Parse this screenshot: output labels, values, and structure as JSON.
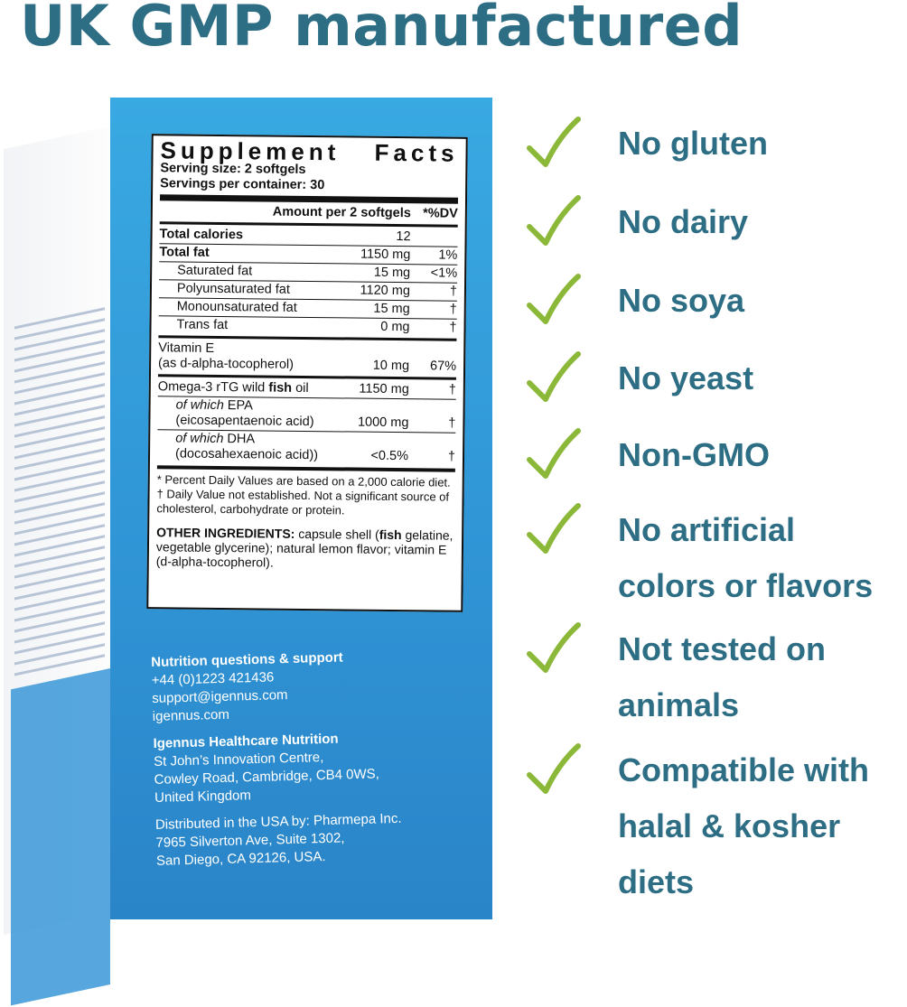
{
  "headline": "UK GMP manufactured",
  "colors": {
    "headline": "#2d6e85",
    "check": "#8cb83a",
    "box_blue": "#2f93d4"
  },
  "supplement_facts": {
    "title_left": "Supplement",
    "title_right": "Facts",
    "serving_size": "Serving size: 2 softgels",
    "servings_per_container": "Servings per container: 30",
    "amount_header": "Amount per 2 softgels",
    "dv_header": "*%DV",
    "rows": [
      {
        "name": "Total calories",
        "amount": "12",
        "dv": ""
      },
      {
        "name": "Total fat",
        "amount": "1150 mg",
        "dv": "1%"
      },
      {
        "name": "Saturated fat",
        "amount": "15 mg",
        "dv": "<1%"
      },
      {
        "name": "Polyunsaturated fat",
        "amount": "1120 mg",
        "dv": "†"
      },
      {
        "name": "Monounsaturated fat",
        "amount": "15 mg",
        "dv": "†"
      },
      {
        "name": "Trans fat",
        "amount": "0 mg",
        "dv": "†"
      },
      {
        "name": "Vitamin E",
        "name2": "(as d-alpha-tocopherol)",
        "amount": "10 mg",
        "dv": "67%"
      },
      {
        "name_pre": "Omega-3 rTG wild ",
        "name_bold": "fish",
        "name_post": " oil",
        "amount": "1150 mg",
        "dv": "†"
      },
      {
        "name_it": "of which",
        "name_post": " EPA",
        "name2": "(eicosapentaenoic acid)",
        "amount": "1000 mg",
        "dv": "†"
      },
      {
        "name_it": "of which",
        "name_post": " DHA",
        "name2": "(docosahexaenoic acid))",
        "amount": "<0.5%",
        "dv": "†"
      }
    ],
    "footnote1": "* Percent Daily Values are based on a 2,000 calorie diet.",
    "footnote2": "† Daily Value not established. Not a significant source of cholesterol, carbohydrate or protein.",
    "other_label": "OTHER INGREDIENTS:",
    "other_1": " capsule shell (",
    "other_bold": "fish",
    "other_2": " gelatine, vegetable glycerine); natural lemon flavor; vitamin E (d-alpha-tocopherol)."
  },
  "contact": {
    "heading": "Nutrition questions & support",
    "phone": "+44 (0)1223 421436",
    "email": "support@igennus.com",
    "web": "igennus.com",
    "company": "Igennus Healthcare Nutrition",
    "addr1": "St John’s Innovation Centre,",
    "addr2": "Cowley Road, Cambridge, CB4 0WS,",
    "addr3": "United Kingdom",
    "dist1": "Distributed in the USA by: Pharmepa Inc.",
    "dist2": "7965 Silverton Ave, Suite 1302,",
    "dist3": "San Diego, CA 92126, USA."
  },
  "claims": [
    {
      "icon": "check-icon",
      "text": "No gluten"
    },
    {
      "icon": "check-icon",
      "text": "No dairy"
    },
    {
      "icon": "check-icon",
      "text": "No soya"
    },
    {
      "icon": "check-icon",
      "text": "No yeast"
    },
    {
      "icon": "check-icon",
      "text": "Non-GMO"
    },
    {
      "icon": "check-icon",
      "text": "No artificial\ncolors or flavors"
    },
    {
      "icon": "check-icon",
      "text": "Not tested on\nanimals"
    },
    {
      "icon": "check-icon",
      "text": "Compatible with\nhalal & kosher\ndiets"
    }
  ]
}
